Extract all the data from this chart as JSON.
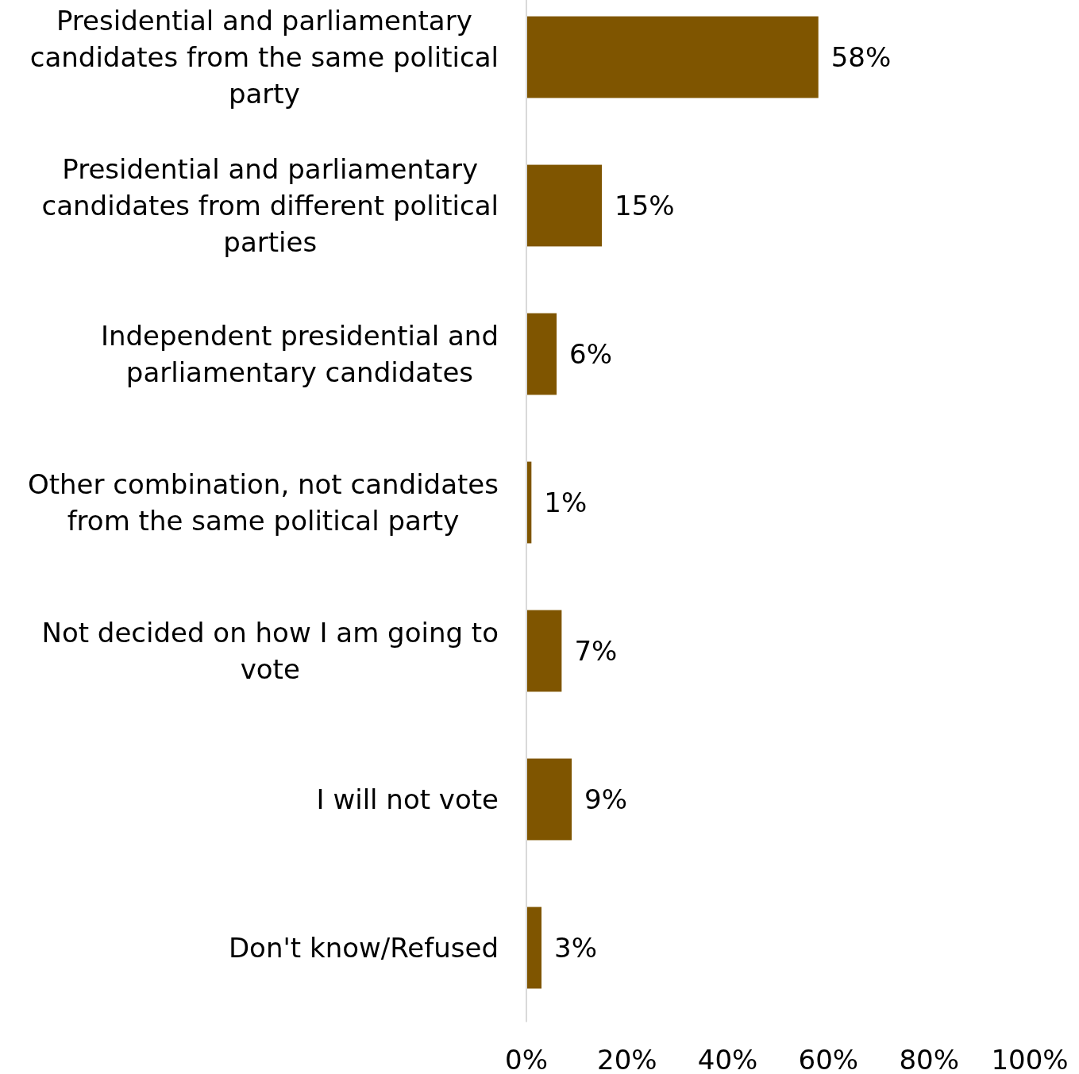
{
  "chart_data": {
    "type": "bar",
    "orientation": "horizontal",
    "categories": [
      "Presidential and parliamentary candidates from the same political party",
      "Presidential and parliamentary candidates from different political parties",
      "Independent presidential and parliamentary candidates",
      "Other combination, not candidates from the same political party",
      "Not decided on how I am going to vote",
      "I will not vote",
      "Don't know/Refused"
    ],
    "values": [
      58,
      15,
      6,
      1,
      7,
      9,
      3
    ],
    "value_labels": [
      "58%",
      "15%",
      "6%",
      "1%",
      "7%",
      "9%",
      "3%"
    ],
    "color": "#7f5500",
    "xlim": [
      0,
      100
    ],
    "xticks": [
      {
        "value": 0,
        "label": "0%"
      },
      {
        "value": 20,
        "label": "20%"
      },
      {
        "value": 40,
        "label": "40%"
      },
      {
        "value": 60,
        "label": "60%"
      },
      {
        "value": 80,
        "label": "80%"
      },
      {
        "value": 100,
        "label": "100%"
      }
    ],
    "grid": false
  }
}
